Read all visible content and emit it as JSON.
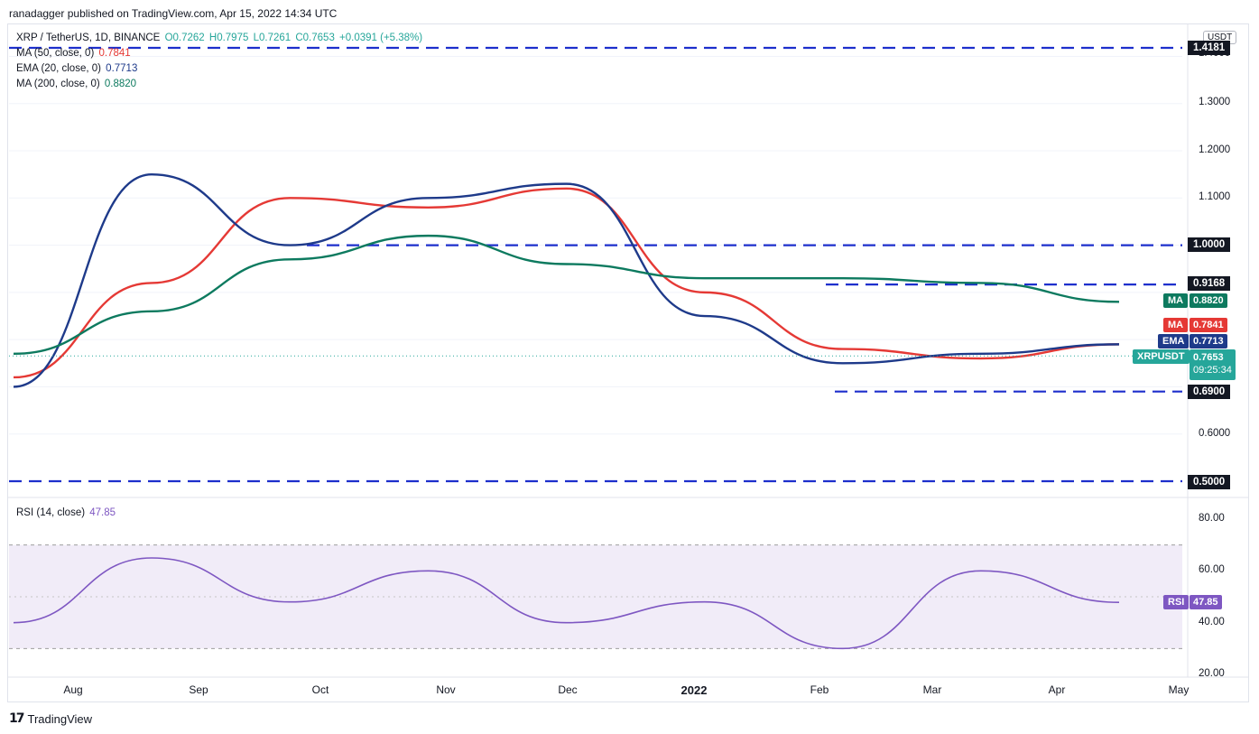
{
  "header": {
    "publisher_line": "ranadagger published on TradingView.com, Apr 15, 2022 14:34 UTC"
  },
  "legend": {
    "symbol": "XRP / TetherUS, 1D, BINANCE",
    "open": "O0.7262",
    "high": "H0.7975",
    "low": "L0.7261",
    "close": "C0.7653",
    "change": "+0.0391 (+5.38%)",
    "ma50_label": "MA (50, close, 0)",
    "ma50_value": "0.7841",
    "ema20_label": "EMA (20, close, 0)",
    "ema20_value": "0.7713",
    "ma200_label": "MA (200, close, 0)",
    "ma200_value": "0.8820",
    "rsi_label": "RSI (14, close)",
    "rsi_value": "47.85"
  },
  "price_scale": {
    "currency": "USDT",
    "ticks": [
      "1.4000",
      "1.3000",
      "1.2000",
      "1.1000",
      "0.6000"
    ],
    "levels": [
      "1.4181",
      "1.0000",
      "0.9168",
      "0.6900",
      "0.5000"
    ],
    "ma_tag": "MA",
    "ma_tag_value": "0.8820",
    "ma2_tag": "MA",
    "ma2_tag_value": "0.7841",
    "ema_tag": "EMA",
    "ema_tag_value": "0.7713",
    "symbol_tag": "XRPUSDT",
    "last_price": "0.7653",
    "countdown": "09:25:34"
  },
  "rsi_scale": {
    "ticks": [
      "80.00",
      "60.00",
      "40.00",
      "20.00"
    ],
    "rsi_tag": "RSI",
    "rsi_tag_value": "47.85"
  },
  "time_axis": {
    "labels": [
      "Aug",
      "Sep",
      "Oct",
      "Nov",
      "Dec",
      "2022",
      "Feb",
      "Mar",
      "Apr",
      "May"
    ]
  },
  "footer": {
    "logo_glyph": "17",
    "brand": "TradingView"
  },
  "colors": {
    "up": "#26a69a",
    "down": "#ef5350",
    "ema20": "#1e3a8a",
    "ma50": "#e53935",
    "ma200": "#0d7a5f",
    "level_line": "#1d2fcc",
    "rsi": "#7e57c2",
    "rsi_band": "#ede7f6"
  },
  "chart_data": [
    {
      "type": "line",
      "title": "XRP / TetherUS, 1D, BINANCE",
      "x": [
        "Aug",
        "Sep",
        "Oct",
        "Nov",
        "Dec",
        "2022",
        "Feb",
        "Mar",
        "Apr"
      ],
      "ylim": [
        0.5,
        1.42
      ],
      "series": [
        {
          "name": "MA (50, close, 0)",
          "values": [
            0.72,
            0.92,
            1.1,
            1.08,
            1.12,
            0.9,
            0.78,
            0.76,
            0.79
          ]
        },
        {
          "name": "EMA (20, close, 0)",
          "values": [
            0.7,
            1.15,
            1.0,
            1.1,
            1.13,
            0.85,
            0.75,
            0.77,
            0.79
          ]
        },
        {
          "name": "MA (200, close, 0)",
          "values": [
            0.77,
            0.86,
            0.97,
            1.02,
            0.96,
            0.93,
            0.93,
            0.92,
            0.88
          ]
        }
      ],
      "horizontal_levels": [
        1.4181,
        1.0,
        0.9168,
        0.69,
        0.5
      ],
      "last_price": 0.7653
    },
    {
      "type": "line",
      "title": "RSI (14, close)",
      "x": [
        "Aug",
        "Sep",
        "Oct",
        "Nov",
        "Dec",
        "2022",
        "Feb",
        "Mar",
        "Apr"
      ],
      "ylim": [
        20,
        85
      ],
      "band": [
        30,
        70
      ],
      "series": [
        {
          "name": "RSI (14, close)",
          "values": [
            40,
            65,
            48,
            60,
            40,
            48,
            30,
            60,
            47.85
          ]
        }
      ]
    }
  ]
}
